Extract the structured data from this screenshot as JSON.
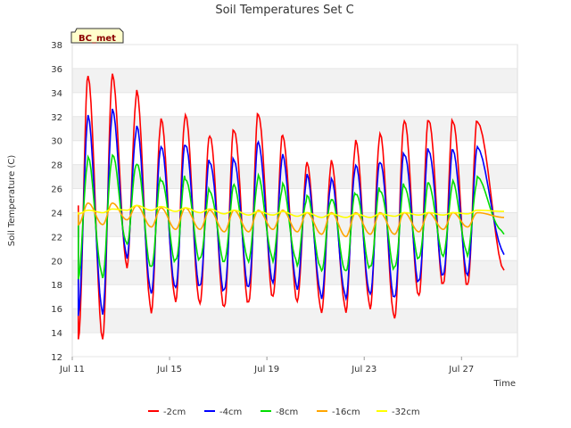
{
  "chart_data": {
    "type": "line",
    "title": "Soil Temperatures Set C",
    "xlabel": "Time",
    "ylabel": "Soil Temperature (C)",
    "badge": "BC_met",
    "xlim": [
      0,
      18.3
    ],
    "ylim": [
      12,
      38
    ],
    "yticks": [
      12,
      14,
      16,
      18,
      20,
      22,
      24,
      26,
      28,
      30,
      32,
      34,
      36,
      38
    ],
    "xticks": [
      {
        "value": 0,
        "label": "Jul 11"
      },
      {
        "value": 4,
        "label": "Jul 15"
      },
      {
        "value": 8,
        "label": "Jul 19"
      },
      {
        "value": 12,
        "label": "Jul 23"
      },
      {
        "value": 16,
        "label": "Jul 27"
      }
    ],
    "grid": true,
    "legend_position": "bottom",
    "x_start": 0.25,
    "x_end": 17.75,
    "series": [
      {
        "name": "-2cm",
        "color": "#ff0000",
        "daily_max": [
          35.5,
          35.5,
          34,
          31.6,
          32,
          30.4,
          31,
          32.4,
          30.6,
          28.2,
          28.2,
          29.8,
          30.4,
          31.6,
          31.8,
          31.8,
          31.8
        ],
        "daily_min": [
          13.2,
          13.3,
          19.4,
          15.8,
          16.8,
          16.6,
          16.2,
          16.4,
          16.8,
          16.4,
          15.6,
          15.8,
          16.2,
          15.4,
          17.2,
          18.0,
          17.8
        ],
        "end": 19.2
      },
      {
        "name": "-4cm",
        "color": "#0000ff",
        "daily_max": [
          32.0,
          32.4,
          31.0,
          29.4,
          29.7,
          28.4,
          28.6,
          30.0,
          28.8,
          27.0,
          26.6,
          27.8,
          28.2,
          29.0,
          29.4,
          29.4,
          29.5
        ],
        "daily_min": [
          15.4,
          15.6,
          20.4,
          17.5,
          17.9,
          17.9,
          17.4,
          17.6,
          18.0,
          17.6,
          17.0,
          17.1,
          17.4,
          17.0,
          18.2,
          18.6,
          18.6
        ],
        "end": 20.5
      },
      {
        "name": "-8cm",
        "color": "#00dd00",
        "daily_max": [
          28.4,
          28.6,
          28.0,
          26.8,
          27.0,
          26.0,
          26.4,
          27.0,
          26.2,
          25.2,
          25.0,
          25.6,
          26.0,
          26.4,
          26.6,
          26.6,
          26.8
        ],
        "daily_min": [
          18.6,
          18.8,
          21.6,
          19.6,
          20.0,
          20.0,
          19.7,
          19.8,
          20.0,
          19.8,
          19.4,
          19.3,
          19.5,
          19.3,
          20.0,
          20.2,
          20.4
        ],
        "end": 22.2
      },
      {
        "name": "-16cm",
        "color": "#ffa500",
        "daily_max": [
          24.8,
          24.8,
          24.6,
          24.4,
          24.4,
          24.2,
          24.2,
          24.2,
          24.2,
          24.0,
          24.0,
          24.0,
          24.0,
          24.0,
          24.0,
          24.0,
          24.0
        ],
        "daily_min": [
          23.0,
          23.0,
          23.4,
          22.8,
          22.6,
          22.6,
          22.4,
          22.4,
          22.6,
          22.4,
          22.2,
          22.0,
          22.2,
          22.2,
          22.4,
          22.6,
          22.8
        ],
        "end": 23.6
      },
      {
        "name": "-32cm",
        "color": "#ffff00",
        "daily_max": [
          24.2,
          24.3,
          24.6,
          24.5,
          24.4,
          24.3,
          24.2,
          24.1,
          24.1,
          24.0,
          23.9,
          23.9,
          23.9,
          24.0,
          24.0,
          24.0,
          24.2
        ],
        "daily_min": [
          23.9,
          24.0,
          24.2,
          24.2,
          24.1,
          24.0,
          23.9,
          23.8,
          23.8,
          23.7,
          23.6,
          23.6,
          23.6,
          23.7,
          23.8,
          23.8,
          23.9
        ],
        "end": 24.1
      }
    ]
  }
}
